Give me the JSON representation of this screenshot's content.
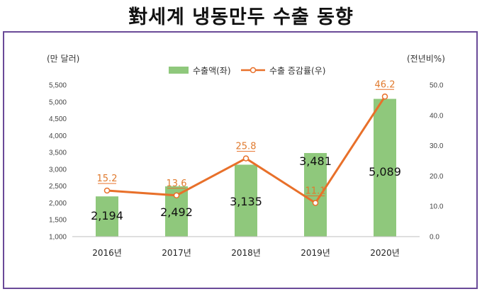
{
  "title": "對세계 냉동만두 수출 동향",
  "colors": {
    "bar": "#8fc87c",
    "line": "#e8702a",
    "frame": "#6a4a98"
  },
  "chart_data": {
    "type": "bar",
    "categories": [
      "2016년",
      "2017년",
      "2018년",
      "2019년",
      "2020년"
    ],
    "series": [
      {
        "name": "수출액(좌)",
        "type": "bar",
        "axis": "left",
        "values": [
          2194,
          2492,
          3135,
          3481,
          5089
        ],
        "labels": [
          "2,194",
          "2,492",
          "3,135",
          "3,481",
          "5,089"
        ]
      },
      {
        "name": "수출 증감률(우)",
        "type": "line",
        "axis": "right",
        "values": [
          15.2,
          13.6,
          25.8,
          11.1,
          46.2
        ],
        "labels": [
          "15.2",
          "13.6",
          "25.8",
          "11.1",
          "46.2"
        ]
      }
    ],
    "left_axis": {
      "unit": "(만 달러)",
      "ylim": [
        1000,
        5500
      ],
      "ticks": [
        "1,000",
        "1,500",
        "2,000",
        "2,500",
        "3,000",
        "3,500",
        "4,000",
        "4,500",
        "5,000",
        "5,500"
      ]
    },
    "right_axis": {
      "unit": "(전년비%)",
      "ylim": [
        0,
        50
      ],
      "ticks": [
        "0.0",
        "10.0",
        "20.0",
        "30.0",
        "40.0",
        "50.0"
      ]
    },
    "legend_position": "top-center",
    "grid": false
  }
}
